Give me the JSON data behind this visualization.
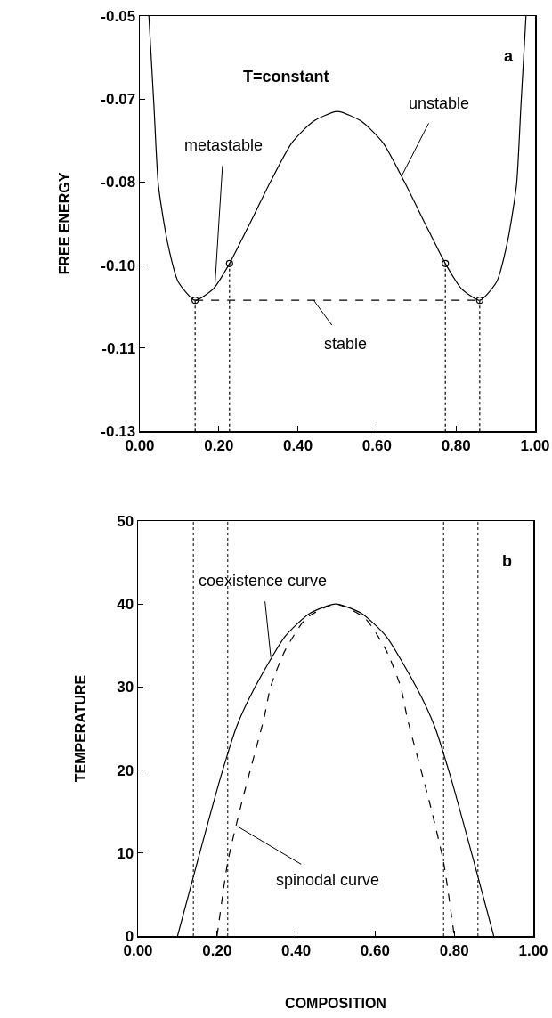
{
  "chart_data": [
    {
      "type": "line",
      "ylabel": "FREE ENERGY",
      "xlim": [
        0,
        1
      ],
      "xticks": [
        {
          "value": 0,
          "label": "0.00"
        },
        {
          "value": 0.2,
          "label": "0.20"
        },
        {
          "value": 0.4,
          "label": "0.40"
        },
        {
          "value": 0.6,
          "label": "0.60"
        },
        {
          "value": 0.8,
          "label": "0.80"
        },
        {
          "value": 1,
          "label": "1.00"
        }
      ],
      "ylim": [
        -0.13,
        -0.05
      ],
      "yticks": [
        {
          "value": -0.13,
          "label": "-0.13"
        },
        {
          "value": -0.114,
          "label": "-0.11"
        },
        {
          "value": -0.098,
          "label": "-0.10"
        },
        {
          "value": -0.082,
          "label": "-0.08"
        },
        {
          "value": -0.066,
          "label": "-0.07"
        },
        {
          "value": -0.05,
          "label": "-0.05"
        }
      ],
      "grid": false,
      "series": [
        {
          "type": "line",
          "color": "#000000",
          "line_style": "solid",
          "marker": "none",
          "x": [
            0.023,
            0.036,
            0.047,
            0.07,
            0.097,
            0.14,
            0.187,
            0.227,
            0.277,
            0.331,
            0.385,
            0.439,
            0.5,
            0.561,
            0.615,
            0.669,
            0.723,
            0.773,
            0.813,
            0.86,
            0.903,
            0.93,
            0.953,
            0.964,
            0.977
          ],
          "values": [
            -0.05,
            -0.0675,
            -0.0826,
            -0.0936,
            -0.1012,
            -0.1048,
            -0.1025,
            -0.0977,
            -0.0902,
            -0.0819,
            -0.0744,
            -0.0703,
            -0.0684,
            -0.0703,
            -0.0744,
            -0.0819,
            -0.0902,
            -0.0977,
            -0.1025,
            -0.1048,
            -0.1012,
            -0.0936,
            -0.0826,
            -0.0675,
            -0.05
          ]
        },
        {
          "type": "line",
          "color": "#000000",
          "line_style": "dashed",
          "marker": "none",
          "x": [
            0.14,
            0.86
          ],
          "values": [
            -0.1048,
            -0.1048
          ]
        },
        {
          "type": "scatter",
          "color": "#000000",
          "marker": "circle",
          "x": [
            0.14,
            0.227,
            0.773,
            0.86
          ],
          "values": [
            -0.1048,
            -0.0977,
            -0.0977,
            -0.1048
          ]
        },
        {
          "type": "line",
          "color": "#000000",
          "line_style": "dotted",
          "marker": "none",
          "x": [
            0.14,
            0.14
          ],
          "values": [
            -0.1048,
            -0.13
          ]
        },
        {
          "type": "line",
          "color": "#000000",
          "line_style": "dotted",
          "marker": "none",
          "x": [
            0.227,
            0.227
          ],
          "values": [
            -0.0977,
            -0.13
          ]
        },
        {
          "type": "line",
          "color": "#000000",
          "line_style": "dotted",
          "marker": "none",
          "x": [
            0.773,
            0.773
          ],
          "values": [
            -0.0977,
            -0.13
          ]
        },
        {
          "type": "line",
          "color": "#000000",
          "line_style": "dotted",
          "marker": "none",
          "x": [
            0.86,
            0.86
          ],
          "values": [
            -0.1048,
            -0.13
          ]
        }
      ],
      "annotations": [
        "T=constant",
        "a",
        {
          "text": "metastable",
          "x": 0.19,
          "y": -0.102
        },
        {
          "text": "unstable",
          "x": 0.664,
          "y": -0.0806
        },
        {
          "text": "stable",
          "x": 0.44,
          "y": -0.1048
        }
      ]
    },
    {
      "type": "line",
      "xlabel": "COMPOSITION",
      "ylabel": "TEMPERATURE",
      "xlim": [
        0,
        1
      ],
      "xticks": [
        {
          "value": 0,
          "label": "0.00"
        },
        {
          "value": 0.2,
          "label": "0.20"
        },
        {
          "value": 0.4,
          "label": "0.40"
        },
        {
          "value": 0.6,
          "label": "0.60"
        },
        {
          "value": 0.8,
          "label": "0.80"
        },
        {
          "value": 1,
          "label": "1.00"
        }
      ],
      "ylim": [
        0,
        50
      ],
      "yticks": [
        0,
        10,
        20,
        30,
        40,
        50
      ],
      "grid": false,
      "series": [
        {
          "type": "line",
          "color": "#000000",
          "line_style": "solid",
          "marker": "none",
          "x": [
            0.1,
            0.155,
            0.21,
            0.25,
            0.295,
            0.372,
            0.435,
            0.5,
            0.565,
            0.628,
            0.705,
            0.75,
            0.79,
            0.845,
            0.9
          ],
          "values": [
            0,
            9.8,
            19.3,
            25.3,
            29.9,
            36.1,
            38.9,
            40,
            38.9,
            36.1,
            29.9,
            25.3,
            19.3,
            9.8,
            0
          ]
        },
        {
          "type": "line",
          "color": "#000000",
          "line_style": "dashed",
          "marker": "none",
          "x": [
            0.2,
            0.227,
            0.263,
            0.318,
            0.336,
            0.372,
            0.426,
            0.5,
            0.574,
            0.628,
            0.664,
            0.682,
            0.737,
            0.773,
            0.8
          ],
          "values": [
            0,
            8.9,
            16.2,
            26.1,
            30.1,
            34.4,
            38.3,
            40,
            38.3,
            34.4,
            30.1,
            26.1,
            16.2,
            8.9,
            0
          ]
        }
      ],
      "ref_lines": [
        {
          "axis": "x",
          "value": 0.14,
          "color": "#000000",
          "line_style": "dotted"
        },
        {
          "axis": "x",
          "value": 0.227,
          "color": "#000000",
          "line_style": "dotted"
        },
        {
          "axis": "x",
          "value": 0.773,
          "color": "#000000",
          "line_style": "dotted"
        },
        {
          "axis": "x",
          "value": 0.86,
          "color": "#000000",
          "line_style": "dotted"
        }
      ],
      "annotations": [
        "b",
        {
          "text": "coexistence curve",
          "x": 0.336,
          "y": 33.6
        },
        {
          "text": "spinodal curve",
          "x": 0.252,
          "y": 13.2
        }
      ]
    }
  ]
}
